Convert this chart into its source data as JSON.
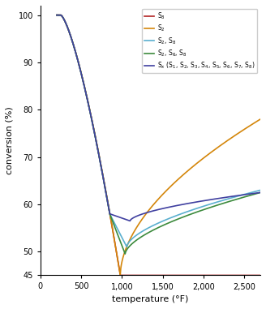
{
  "title": "",
  "xlabel": "temperature (°F)",
  "ylabel": "conversion (%)",
  "xlim": [
    0,
    2700
  ],
  "ylim": [
    45,
    102
  ],
  "yticks": [
    45,
    50,
    60,
    70,
    80,
    90,
    100
  ],
  "xticks": [
    0,
    500,
    1000,
    1500,
    2000,
    2500
  ],
  "xtick_labels": [
    "0",
    "500",
    "1,000",
    "1,500",
    "2,000",
    "2,500"
  ],
  "legend_labels": [
    "S$_8$",
    "S$_2$",
    "S$_2$, S$_8$",
    "S$_2$, S$_6$, S$_8$",
    "S$_x$ (S$_1$, S$_2$, S$_3$, S$_4$, S$_5$, S$_6$, S$_7$, S$_8$)"
  ],
  "line_colors": [
    "#b22222",
    "#d4860a",
    "#5aafcf",
    "#3c8a3c",
    "#4040a0"
  ],
  "background_color": "#ffffff"
}
